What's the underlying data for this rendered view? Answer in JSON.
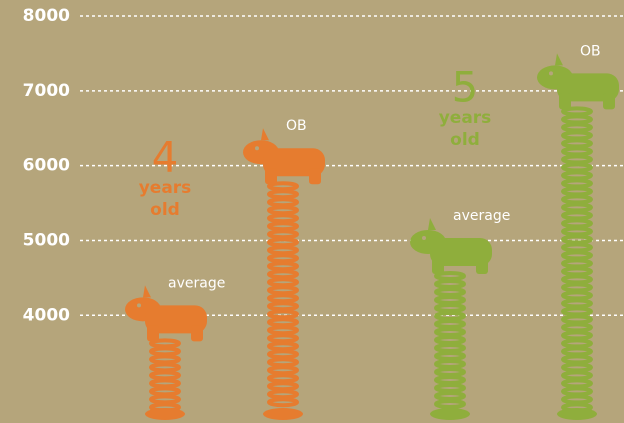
{
  "chart_data": {
    "type": "pictogram-bar",
    "ylim": [
      2600,
      8000
    ],
    "yticks": [
      4000,
      5000,
      6000,
      7000,
      8000
    ],
    "grid": true,
    "groups": [
      {
        "number": "4",
        "unit": "years",
        "suffix": "old",
        "color": "#e67c2f",
        "bars": [
          {
            "label": "average",
            "value": 4400
          },
          {
            "label": "OB",
            "value": 6500
          }
        ]
      },
      {
        "number": "5",
        "unit": "years",
        "suffix": "old",
        "color": "#8fae3c",
        "bars": [
          {
            "label": "average",
            "value": 5300
          },
          {
            "label": "OB",
            "value": 7500
          }
        ]
      }
    ]
  }
}
